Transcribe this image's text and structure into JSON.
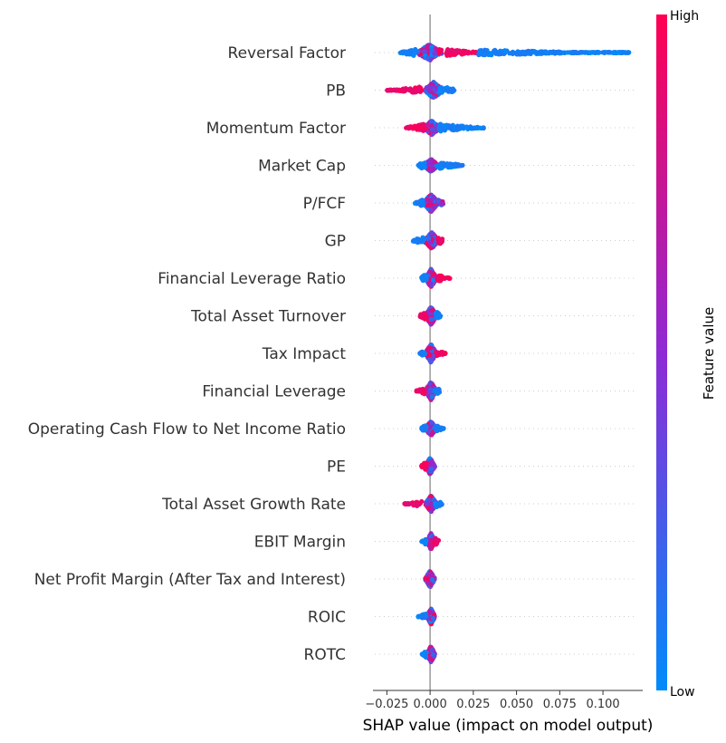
{
  "chart_data": {
    "type": "scatter",
    "subtype": "shap-beeswarm",
    "xlabel": "SHAP value (impact on model output)",
    "xlim": [
      -0.032,
      0.123
    ],
    "x_ticks": [
      -0.025,
      0.0,
      0.025,
      0.05,
      0.075,
      0.1
    ],
    "x_tick_labels": [
      "−0.025",
      "0.000",
      "0.025",
      "0.050",
      "0.075",
      "0.100"
    ],
    "colorbar": {
      "label": "Feature value",
      "high_label": "High",
      "low_label": "Low",
      "high_color": "#ff0052",
      "mid_color": "#8f2ad5",
      "low_color": "#008bfb"
    },
    "features": [
      {
        "name": "Reversal Factor",
        "min": -0.018,
        "max": 0.116,
        "core": [
          -0.008,
          0.007
        ],
        "spread_max": 9,
        "tails": [
          [
            "high",
            0.005,
            0.028
          ],
          [
            "low",
            0.028,
            0.116
          ],
          [
            "low",
            -0.018,
            -0.008
          ]
        ]
      },
      {
        "name": "PB",
        "min": -0.025,
        "max": 0.014,
        "core": [
          -0.004,
          0.008
        ],
        "spread_max": 9,
        "tails": [
          [
            "high",
            -0.025,
            -0.005
          ],
          [
            "low",
            0.005,
            0.014
          ]
        ]
      },
      {
        "name": "Momentum Factor",
        "min": -0.014,
        "max": 0.031,
        "core": [
          -0.004,
          0.006
        ],
        "spread_max": 8,
        "tails": [
          [
            "high",
            -0.014,
            -0.003
          ],
          [
            "low",
            0.005,
            0.031
          ]
        ]
      },
      {
        "name": "Market Cap",
        "min": -0.007,
        "max": 0.019,
        "core": [
          -0.004,
          0.005
        ],
        "spread_max": 7,
        "tails": [
          [
            "low",
            0.004,
            0.019
          ],
          [
            "low",
            -0.007,
            -0.003
          ]
        ]
      },
      {
        "name": "P/FCF",
        "min": -0.009,
        "max": 0.008,
        "core": [
          -0.004,
          0.005
        ],
        "spread_max": 10,
        "tails": [
          [
            "low",
            -0.009,
            -0.004
          ],
          [
            "mix",
            0.004,
            0.008
          ]
        ]
      },
      {
        "name": "GP",
        "min": -0.01,
        "max": 0.008,
        "core": [
          -0.004,
          0.006
        ],
        "spread_max": 9,
        "tails": [
          [
            "low",
            -0.01,
            -0.003
          ],
          [
            "high",
            0.004,
            0.008
          ]
        ]
      },
      {
        "name": "Financial Leverage Ratio",
        "min": -0.005,
        "max": 0.012,
        "core": [
          -0.003,
          0.004
        ],
        "spread_max": 10,
        "tails": [
          [
            "high",
            0.004,
            0.012
          ],
          [
            "low",
            -0.005,
            -0.002
          ]
        ]
      },
      {
        "name": "Total Asset Turnover",
        "min": -0.006,
        "max": 0.006,
        "core": [
          -0.003,
          0.004
        ],
        "spread_max": 10,
        "tails": [
          [
            "high",
            -0.006,
            -0.002
          ],
          [
            "low",
            0.003,
            0.006
          ]
        ]
      },
      {
        "name": "Tax Impact",
        "min": -0.006,
        "max": 0.009,
        "core": [
          -0.003,
          0.004
        ],
        "spread_max": 10,
        "tails": [
          [
            "high",
            0.004,
            0.009
          ],
          [
            "low",
            -0.006,
            -0.003
          ]
        ]
      },
      {
        "name": "Financial Leverage",
        "min": -0.008,
        "max": 0.006,
        "core": [
          -0.003,
          0.004
        ],
        "spread_max": 10,
        "tails": [
          [
            "high",
            -0.008,
            -0.003
          ],
          [
            "low",
            0.003,
            0.006
          ]
        ]
      },
      {
        "name": "Operating Cash Flow to Net Income Ratio",
        "min": -0.005,
        "max": 0.008,
        "core": [
          -0.003,
          0.004
        ],
        "spread_max": 8,
        "tails": [
          [
            "low",
            0.003,
            0.008
          ],
          [
            "low",
            -0.005,
            -0.002
          ]
        ]
      },
      {
        "name": "PE",
        "min": -0.005,
        "max": 0.004,
        "core": [
          -0.003,
          0.003
        ],
        "spread_max": 9,
        "tails": [
          [
            "high",
            -0.005,
            -0.002
          ]
        ]
      },
      {
        "name": "Total Asset Growth Rate",
        "min": -0.015,
        "max": 0.007,
        "core": [
          -0.003,
          0.004
        ],
        "spread_max": 9,
        "tails": [
          [
            "high",
            -0.015,
            -0.004
          ],
          [
            "low",
            0.003,
            0.007
          ]
        ]
      },
      {
        "name": "EBIT Margin",
        "min": -0.005,
        "max": 0.005,
        "core": [
          -0.002,
          0.003
        ],
        "spread_max": 9,
        "tails": [
          [
            "low",
            -0.005,
            -0.002
          ],
          [
            "high",
            0.002,
            0.005
          ]
        ]
      },
      {
        "name": "Net Profit Margin (After Tax and Interest)",
        "min": -0.004,
        "max": 0.003,
        "core": [
          -0.003,
          0.003
        ],
        "spread_max": 9,
        "tails": []
      },
      {
        "name": "ROIC",
        "min": -0.007,
        "max": 0.003,
        "core": [
          -0.002,
          0.003
        ],
        "spread_max": 9,
        "tails": [
          [
            "low",
            -0.007,
            -0.002
          ]
        ]
      },
      {
        "name": "ROTC",
        "min": -0.005,
        "max": 0.004,
        "core": [
          -0.002,
          0.003
        ],
        "spread_max": 9,
        "tails": [
          [
            "low",
            -0.005,
            -0.002
          ]
        ]
      }
    ]
  }
}
